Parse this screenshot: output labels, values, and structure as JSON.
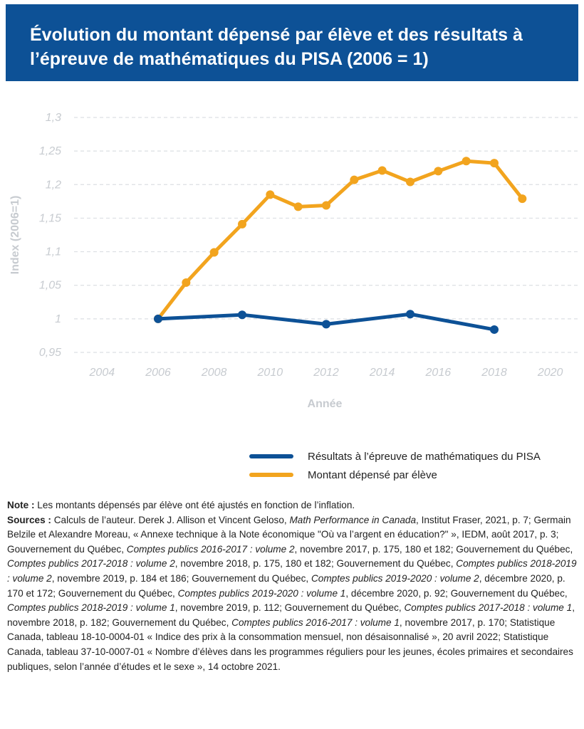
{
  "title": "Évolution du montant dépensé par élève et des résultats à l’épreuve de mathématiques du PISA (2006 = 1)",
  "chart_data": {
    "type": "line",
    "title": "Évolution du montant dépensé par élève et des résultats à l’épreuve de mathématiques du PISA (2006 = 1)",
    "xlabel": "Année",
    "ylabel": "Index (2006=1)",
    "xlim": [
      2003,
      2021
    ],
    "ylim": [
      0.95,
      1.3
    ],
    "xticks": [
      2004,
      2006,
      2008,
      2010,
      2012,
      2014,
      2016,
      2018,
      2020
    ],
    "yticks": [
      0.95,
      1,
      1.05,
      1.1,
      1.15,
      1.2,
      1.25,
      1.3
    ],
    "ytick_labels": [
      "0,95",
      "1",
      "1,05",
      "1,1",
      "1,15",
      "1,2",
      "1,25",
      "1,3"
    ],
    "grid": "horizontal dashed",
    "legend_position": "bottom-right",
    "series": [
      {
        "name": "Résultats à l’épreuve de mathématiques du PISA",
        "color": "#0d5196",
        "x": [
          2006,
          2009,
          2012,
          2015,
          2018
        ],
        "y": [
          1.0,
          1.006,
          0.992,
          1.007,
          0.984
        ]
      },
      {
        "name": "Montant dépensé par élève",
        "color": "#f2a41e",
        "x": [
          2006,
          2007,
          2008,
          2009,
          2010,
          2011,
          2012,
          2013,
          2014,
          2015,
          2016,
          2017,
          2018,
          2019
        ],
        "y": [
          1.0,
          1.054,
          1.099,
          1.141,
          1.185,
          1.167,
          1.169,
          1.207,
          1.221,
          1.204,
          1.22,
          1.235,
          1.232,
          1.179
        ]
      }
    ]
  },
  "notes": {
    "note_label": "Note :",
    "note_text": " Les montants dépensés par élève ont été ajustés en fonction de l’inflation.",
    "sources_label": "Sources :",
    "sources": [
      {
        "t": " Calculs de l’auteur. Derek J. Allison et Vincent Geloso, ",
        "i": false
      },
      {
        "t": "Math Performance in Canada",
        "i": true
      },
      {
        "t": ", Institut Fraser, 2021, p. 7; Germain Belzile et Alexandre Moreau, « Annexe technique à la Note économique \"Où va l’argent en éducation?\" », IEDM, août 2017, p. 3; Gouvernement du Québec, ",
        "i": false
      },
      {
        "t": "Comptes publics 2016-2017 : volume 2",
        "i": true
      },
      {
        "t": ", novembre 2017, p. 175, 180 et 182; Gouvernement du Québec, ",
        "i": false
      },
      {
        "t": "Comptes publics 2017-2018 : volume 2",
        "i": true
      },
      {
        "t": ", novembre 2018, p. 175, 180 et 182; Gouvernement du Québec, ",
        "i": false
      },
      {
        "t": "Comptes publics 2018-2019 : volume 2",
        "i": true
      },
      {
        "t": ", novembre 2019, p. 184 et 186; Gouvernement du Québec, ",
        "i": false
      },
      {
        "t": "Comptes publics 2019-2020 : volume 2",
        "i": true
      },
      {
        "t": ", décembre 2020, p. 170 et 172; Gouvernement du Québec, ",
        "i": false
      },
      {
        "t": "Comptes publics 2019-2020 : volume 1",
        "i": true
      },
      {
        "t": ", décembre 2020, p. 92; Gouvernement du Québec, ",
        "i": false
      },
      {
        "t": "Comptes publics 2018-2019 : volume 1",
        "i": true
      },
      {
        "t": ", novembre 2019, p. 112; Gouvernement du Québec, ",
        "i": false
      },
      {
        "t": "Comptes publics 2017-2018 : volume 1",
        "i": true
      },
      {
        "t": ", novembre 2018, p. 182; Gouvernement du Québec, ",
        "i": false
      },
      {
        "t": "Comptes publics 2016-2017 : volume 1",
        "i": true
      },
      {
        "t": ", novembre 2017, p. 170; Statistique Canada, tableau 18-10-0004-01 « Indice des prix à la consommation mensuel, non désaisonnalisé », 20 avril 2022; Statistique Canada, tableau 37-10-0007-01 « Nombre d’élèves dans les programmes réguliers pour les jeunes, écoles primaires et secondaires publiques, selon l’année d’études et le sexe », 14 octobre 2021.",
        "i": false
      }
    ]
  }
}
